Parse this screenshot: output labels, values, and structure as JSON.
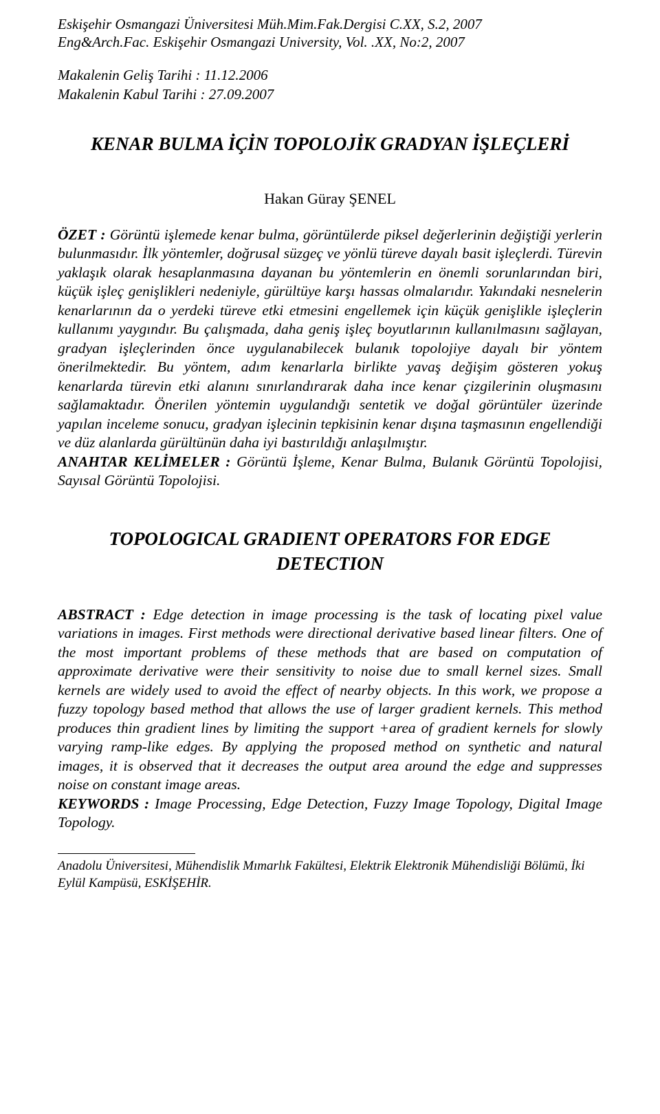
{
  "journal": {
    "line1": "Eskişehir Osmangazi Üniversitesi Müh.Mim.Fak.Dergisi C.XX, S.2, 2007",
    "line2": "Eng&Arch.Fac. Eskişehir Osmangazi University, Vol. .XX, No:2, 2007"
  },
  "dates": {
    "received": "Makalenin Geliş Tarihi   : 11.12.2006",
    "accepted": "Makalenin Kabul Tarihi : 27.09.2007"
  },
  "title_tr": "KENAR BULMA İÇİN TOPOLOJİK GRADYAN İŞLEÇLERİ",
  "author": "Hakan Güray ŞENEL",
  "ozet": {
    "label": "ÖZET :",
    "body": " Görüntü işlemede kenar bulma, görüntülerde piksel değerlerinin değiştiği yerlerin bulunmasıdır. İlk yöntemler, doğrusal süzgeç ve yönlü türeve dayalı basit işleçlerdi. Türevin yaklaşık olarak hesaplanmasına dayanan bu yöntemlerin en önemli sorunlarından biri, küçük işleç genişlikleri nedeniyle, gürültüye karşı hassas olmalarıdır. Yakındaki nesnelerin kenarlarının da o yerdeki türeve etki etmesini engellemek için küçük genişlikle işleçlerin kullanımı yaygındır. Bu çalışmada, daha geniş işleç boyutlarının kullanılmasını sağlayan, gradyan işleçlerinden önce uygulanabilecek bulanık topolojiye dayalı bir yöntem önerilmektedir. Bu yöntem, adım kenarlarla birlikte yavaş değişim gösteren yokuş kenarlarda türevin etki alanını sınırlandırarak daha ince kenar çizgilerinin oluşmasını sağlamaktadır. Önerilen yöntemin uygulandığı sentetik ve doğal görüntüler üzerinde yapılan inceleme sonucu, gradyan işlecinin tepkisinin kenar dışına taşmasının engellendiği ve düz alanlarda gürültünün daha iyi bastırıldığı anlaşılmıştır."
  },
  "anahtar": {
    "label": "ANAHTAR KELİMELER :",
    "body": " Görüntü İşleme, Kenar Bulma, Bulanık Görüntü Topolojisi, Sayısal Görüntü Topolojisi."
  },
  "title_en": "TOPOLOGICAL GRADIENT OPERATORS FOR EDGE DETECTION",
  "abstract_en": {
    "label": "ABSTRACT :",
    "body": " Edge detection in image processing is the task of locating pixel value variations in images. First methods were directional derivative based linear filters. One of the most important problems of these methods that are based on computation of approximate derivative were their sensitivity to noise due to small kernel sizes. Small kernels are widely used to avoid the effect of nearby objects. In this work, we propose a fuzzy topology based method that allows the use of larger gradient kernels. This method produces thin gradient lines by limiting the support +area of gradient kernels for slowly varying ramp-like edges. By applying the proposed method on synthetic and natural images, it is observed that it decreases the output area around the edge and suppresses noise on constant image areas."
  },
  "keywords_en": {
    "label": "KEYWORDS :",
    "body": " Image Processing, Edge Detection, Fuzzy Image Topology, Digital Image Topology."
  },
  "footnote": "Anadolu Üniversitesi, Mühendislik Mımarlık Fakültesi, Elektrik Elektronik Mühendisliği Bölümü, İki Eylül Kampüsü, ESKİŞEHİR."
}
